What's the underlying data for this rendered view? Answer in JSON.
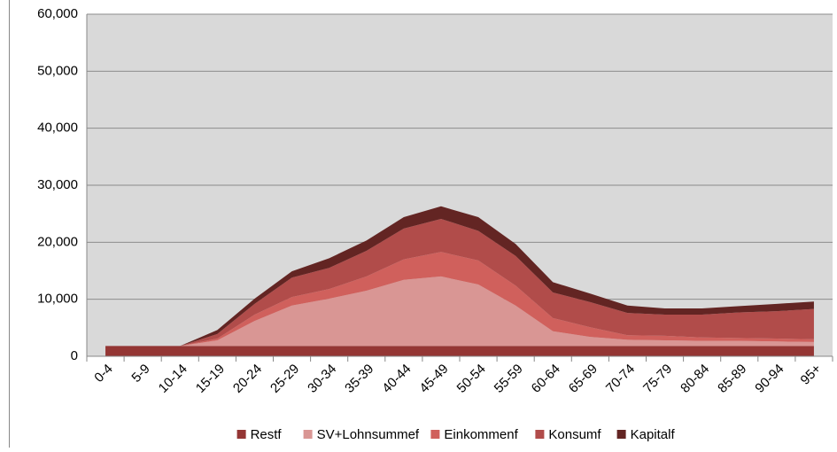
{
  "chart_data": {
    "type": "stacked_area",
    "categories": [
      "0-4",
      "5-9",
      "10-14",
      "15-19",
      "20-24",
      "25-29",
      "30-34",
      "35-39",
      "40-44",
      "45-49",
      "50-54",
      "55-59",
      "60-64",
      "65-69",
      "70-74",
      "75-79",
      "80-84",
      "85-89",
      "90-94",
      "95+"
    ],
    "series": [
      {
        "name": "Restf",
        "color": "#943634",
        "values": [
          1800,
          1800,
          1800,
          1800,
          1800,
          1800,
          1800,
          1800,
          1800,
          1800,
          1800,
          1800,
          1800,
          1800,
          1800,
          1800,
          1800,
          1800,
          1800,
          1800
        ]
      },
      {
        "name": "SV+Lohnsummef",
        "color": "#d99694",
        "values": [
          0,
          0,
          0,
          1000,
          4400,
          7100,
          8300,
          9700,
          11600,
          12200,
          10800,
          7100,
          2600,
          1600,
          1100,
          1000,
          900,
          900,
          800,
          700
        ]
      },
      {
        "name": "Einkommenf",
        "color": "#d0605c",
        "values": [
          0,
          0,
          0,
          300,
          1100,
          1500,
          1700,
          2500,
          3600,
          4300,
          4200,
          3500,
          2300,
          1700,
          800,
          800,
          600,
          500,
          500,
          500
        ]
      },
      {
        "name": "Konsumf",
        "color": "#b14c4a",
        "values": [
          0,
          0,
          0,
          800,
          1900,
          3400,
          3700,
          4500,
          5400,
          5800,
          5200,
          5200,
          4500,
          4400,
          3900,
          3700,
          4000,
          4500,
          4800,
          5300
        ]
      },
      {
        "name": "Kapitalf",
        "color": "#632523",
        "values": [
          0,
          0,
          0,
          700,
          900,
          1100,
          1700,
          1800,
          2000,
          2200,
          2400,
          2100,
          1800,
          1500,
          1300,
          1100,
          1100,
          1100,
          1300,
          1300
        ]
      }
    ],
    "ylim": [
      0,
      60000
    ],
    "yticks": [
      0,
      {
        "value": 10000,
        "label": "10,000"
      },
      {
        "value": 20000,
        "label": "20,000"
      },
      {
        "value": 30000,
        "label": "30,000"
      },
      {
        "value": 40000,
        "label": "40,000"
      },
      {
        "value": 50000,
        "label": "50,000"
      },
      {
        "value": 60000,
        "label": "60,000"
      }
    ],
    "grid": true,
    "legend": "bottom"
  }
}
